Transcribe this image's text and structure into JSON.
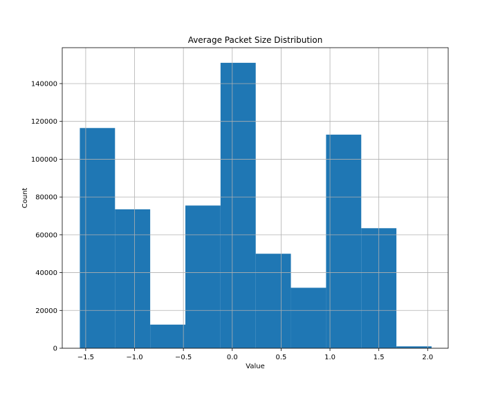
{
  "chart_data": {
    "type": "bar",
    "title": "Average Packet Size Distribution",
    "xlabel": "Value",
    "ylabel": "Count",
    "xlim": [
      -1.74,
      2.21
    ],
    "ylim": [
      0,
      159000
    ],
    "xticks": [
      -1.5,
      -1.0,
      -0.5,
      0.0,
      0.5,
      1.0,
      1.5,
      2.0
    ],
    "xtick_labels": [
      "−1.5",
      "−1.0",
      "−0.5",
      "0.0",
      "0.5",
      "1.0",
      "1.5",
      "2.0"
    ],
    "yticks": [
      0,
      20000,
      40000,
      60000,
      80000,
      100000,
      120000,
      140000
    ],
    "ytick_labels": [
      "0",
      "20000",
      "40000",
      "60000",
      "80000",
      "100000",
      "120000",
      "140000"
    ],
    "grid": true,
    "bar_color": "#1f77b4",
    "bins": [
      {
        "start": -1.56,
        "end": -1.2,
        "count": 116500
      },
      {
        "start": -1.2,
        "end": -0.84,
        "count": 73500
      },
      {
        "start": -0.84,
        "end": -0.48,
        "count": 12500
      },
      {
        "start": -0.48,
        "end": -0.12,
        "count": 75500
      },
      {
        "start": -0.12,
        "end": 0.24,
        "count": 151000
      },
      {
        "start": 0.24,
        "end": 0.6,
        "count": 50000
      },
      {
        "start": 0.6,
        "end": 0.96,
        "count": 32000
      },
      {
        "start": 0.96,
        "end": 1.32,
        "count": 113000
      },
      {
        "start": 1.32,
        "end": 1.68,
        "count": 63500
      },
      {
        "start": 1.68,
        "end": 2.04,
        "count": 1000
      }
    ]
  }
}
